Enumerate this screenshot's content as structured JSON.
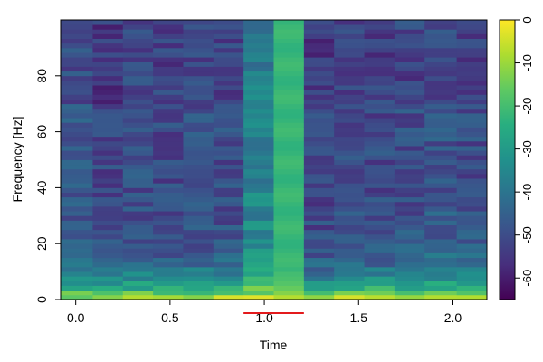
{
  "chart_data": {
    "type": "heatmap",
    "xlabel": "Time",
    "ylabel": "Frequency [Hz]",
    "x_ticks": [
      "0.0",
      "0.5",
      "1.0",
      "1.5",
      "2.0"
    ],
    "y_ticks": [
      "0",
      "20",
      "40",
      "60",
      "80"
    ],
    "colorbar_ticks": [
      "0",
      "-10",
      "-20",
      "-30",
      "-40",
      "-50",
      "-60"
    ],
    "xlim": [
      -0.08,
      2.18
    ],
    "ylim": [
      0,
      100
    ],
    "color_range": [
      -65,
      0
    ],
    "colormap": [
      "#440154",
      "#472f7d",
      "#3b528b",
      "#2c728e",
      "#21918c",
      "#28ae80",
      "#5ec962",
      "#addc30",
      "#fde725"
    ],
    "time_bins": [
      {
        "t0": -0.08,
        "t1": 0.09
      },
      {
        "t0": 0.09,
        "t1": 0.25
      },
      {
        "t0": 0.25,
        "t1": 0.41
      },
      {
        "t0": 0.41,
        "t1": 0.57
      },
      {
        "t0": 0.57,
        "t1": 0.73
      },
      {
        "t0": 0.73,
        "t1": 0.89
      },
      {
        "t0": 0.89,
        "t1": 1.05
      },
      {
        "t0": 1.05,
        "t1": 1.21
      },
      {
        "t0": 1.21,
        "t1": 1.37
      },
      {
        "t0": 1.37,
        "t1": 1.53
      },
      {
        "t0": 1.53,
        "t1": 1.69
      },
      {
        "t0": 1.69,
        "t1": 1.85
      },
      {
        "t0": 1.85,
        "t1": 2.02
      },
      {
        "t0": 2.02,
        "t1": 2.18
      }
    ],
    "column_levels_db": [
      -48,
      -52,
      -50,
      -51,
      -50,
      -50,
      -36,
      -22,
      -52,
      -50,
      -51,
      -50,
      -48,
      -50
    ],
    "low_freq_peak_db": [
      -6,
      -5,
      -4,
      -3,
      -3,
      -3,
      -3,
      -4,
      -4,
      -3,
      -3,
      -3,
      -4,
      -3
    ],
    "marker": {
      "x0": 0.89,
      "x1": 1.21,
      "color": "#e31a1c"
    }
  }
}
